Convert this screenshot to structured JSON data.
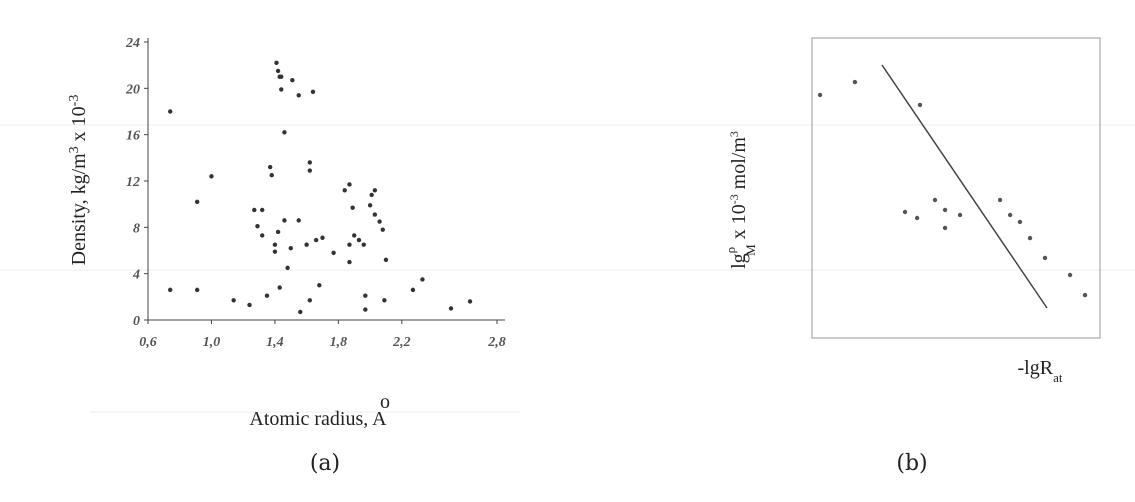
{
  "chart_data": [
    {
      "type": "scatter",
      "caption": "(a)",
      "y_label_parts": [
        "Density, kg/m",
        "3",
        " x 10",
        "-3"
      ],
      "x_label": "Atomic radius, A",
      "x_label_mark": "o",
      "color": "#333333",
      "xlim": [
        0.6,
        2.8
      ],
      "ylim": [
        0,
        24
      ],
      "xticks": [
        {
          "value": 0.6,
          "label": "0,6"
        },
        {
          "value": 1.0,
          "label": "1,0"
        },
        {
          "value": 1.4,
          "label": "1,4"
        },
        {
          "value": 1.8,
          "label": "1,8"
        },
        {
          "value": 2.2,
          "label": "2,2"
        },
        {
          "value": 2.8,
          "label": "2,8"
        }
      ],
      "yticks": [
        0,
        4,
        8,
        12,
        16,
        20,
        24
      ],
      "x": [
        0.74,
        0.74,
        0.91,
        0.91,
        1.0,
        1.14,
        1.24,
        1.27,
        1.29,
        1.32,
        1.32,
        1.35,
        1.37,
        1.38,
        1.41,
        1.42,
        1.43,
        1.44,
        1.44,
        1.51,
        1.55,
        1.64,
        1.46,
        1.62,
        1.62,
        1.46,
        1.55,
        1.42,
        1.4,
        1.4,
        1.5,
        1.48,
        1.6,
        1.66,
        1.7,
        1.62,
        1.68,
        1.56,
        1.43,
        1.77,
        1.84,
        1.87,
        1.89,
        1.9,
        1.93,
        1.96,
        1.97,
        1.97,
        1.87,
        1.87,
        2.01,
        2.03,
        2.0,
        2.03,
        2.06,
        2.08,
        2.1,
        2.09,
        2.27,
        2.33,
        2.51,
        2.63
      ],
      "y": [
        18,
        2.6,
        10.2,
        2.6,
        12.4,
        1.7,
        1.3,
        9.5,
        8.1,
        9.5,
        7.3,
        2.1,
        13.2,
        12.5,
        22.2,
        21.5,
        21,
        21,
        19.9,
        20.7,
        19.4,
        19.7,
        16.2,
        13.6,
        12.9,
        8.6,
        8.6,
        7.6,
        6.5,
        5.9,
        6.2,
        4.5,
        6.5,
        6.9,
        7.1,
        1.7,
        3,
        0.7,
        2.8,
        5.8,
        11.2,
        11.7,
        9.7,
        7.3,
        6.9,
        6.5,
        2.1,
        0.9,
        6.5,
        5,
        10.8,
        11.2,
        9.9,
        9.1,
        8.5,
        7.8,
        5.2,
        1.7,
        2.6,
        3.5,
        1,
        1.6
      ]
    },
    {
      "type": "scatter",
      "caption": "(b)",
      "y_label_parts": [
        "lg",
        "ρ",
        "M",
        " x 10",
        "-3",
        " mol/m",
        "3"
      ],
      "x_label_parts": [
        "-lgR",
        "at"
      ],
      "color": "#555555",
      "xlim": [
        0,
        1
      ],
      "ylim": [
        0,
        1
      ],
      "x": [
        0.028,
        0.149,
        0.375,
        0.323,
        0.365,
        0.427,
        0.462,
        0.514,
        0.462,
        0.653,
        0.688,
        0.722,
        0.757,
        0.809,
        0.896,
        0.948
      ],
      "y": [
        0.81,
        0.853,
        0.777,
        0.42,
        0.4,
        0.46,
        0.427,
        0.41,
        0.367,
        0.46,
        0.41,
        0.387,
        0.333,
        0.267,
        0.21,
        0.143
      ],
      "fit_line": {
        "x": [
          0.243,
          0.816
        ],
        "y": [
          0.91,
          0.1
        ]
      }
    }
  ]
}
